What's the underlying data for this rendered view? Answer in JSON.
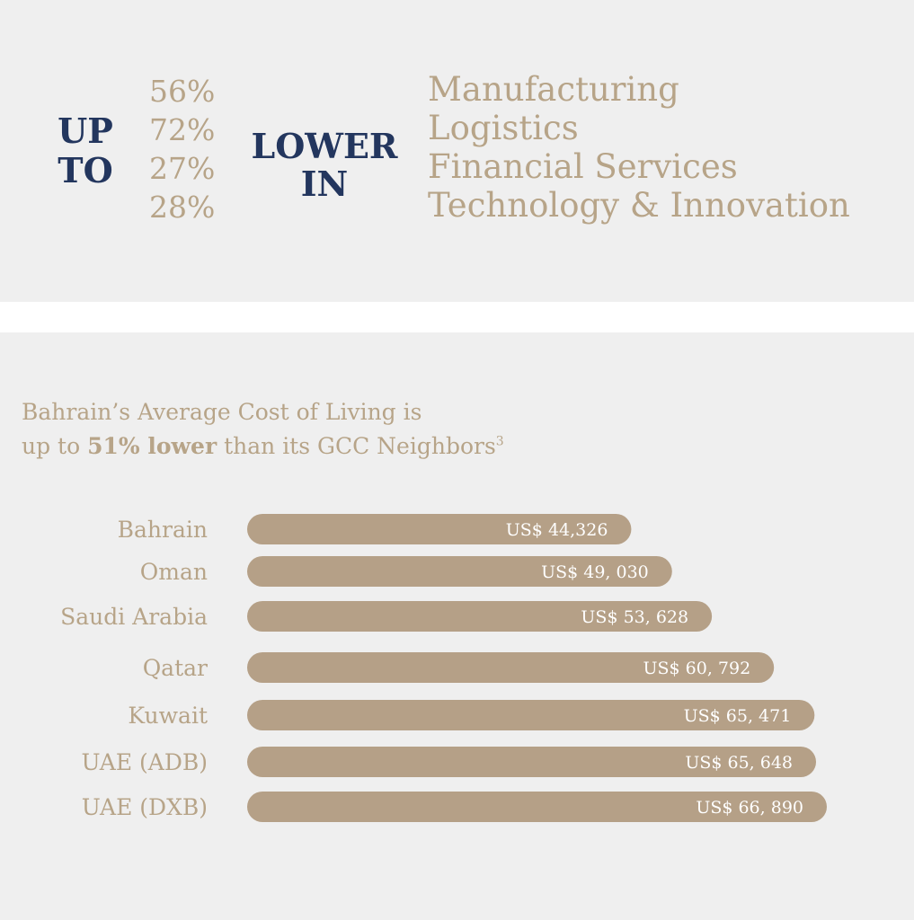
{
  "top": {
    "up_to_line1": "UP",
    "up_to_line2": "TO",
    "percentages": [
      "56%",
      "72%",
      "27%",
      "28%"
    ],
    "lower_in_line1": "LOWER",
    "lower_in_line2": "IN",
    "sectors": [
      "Manufacturing",
      "Logistics",
      "Financial Services",
      "Technology & Innovation"
    ]
  },
  "headline": {
    "line1": "Bahrain’s Average Cost of Living is",
    "line2_pre": "up to ",
    "line2_bold": "51% lower",
    "line2_post": " than its GCC Neighbors",
    "footnote": "3"
  },
  "colors": {
    "panel_background": "#efefef",
    "navy": "#23365e",
    "gold": "#b7a488",
    "bar": "#b5a087"
  },
  "chart_data": {
    "type": "bar",
    "orientation": "horizontal",
    "categories": [
      "Bahrain",
      "Oman",
      "Saudi Arabia",
      "Qatar",
      "Kuwait",
      "UAE (ADB)",
      "UAE (DXB)"
    ],
    "values": [
      44326,
      49030,
      53628,
      60792,
      65471,
      65648,
      66890
    ],
    "value_labels": [
      "US$ 44,326",
      "US$ 49, 030",
      "US$ 53, 628",
      "US$ 60, 792",
      "US$ 65, 471",
      "US$ 65, 648",
      "US$ 66, 890"
    ],
    "grid": false,
    "legend": "none"
  }
}
